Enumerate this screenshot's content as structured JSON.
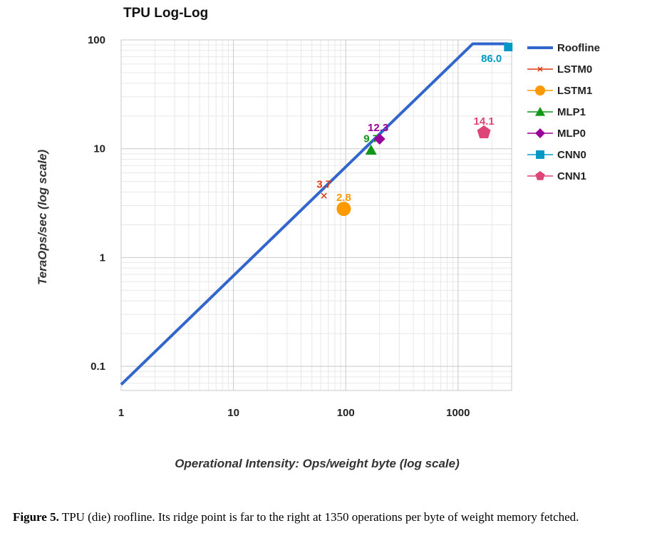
{
  "chart_data": {
    "type": "scatter",
    "title": "TPU Log-Log",
    "xlabel": "Operational Intensity: Ops/weight byte (log scale)",
    "ylabel": "TeraOps/sec (log scale)",
    "x_scale": "log",
    "y_scale": "log",
    "xlim": [
      1,
      3000
    ],
    "ylim": [
      0.06,
      100
    ],
    "x_ticks": [
      "1",
      "10",
      "100",
      "1000"
    ],
    "x_tick_values": [
      1,
      10,
      100,
      1000
    ],
    "y_ticks": [
      "0.1",
      "1",
      "10",
      "100"
    ],
    "y_tick_values": [
      0.1,
      1,
      10,
      100
    ],
    "grid": true,
    "legend_position": "right",
    "roofline": {
      "name": "Roofline",
      "color": "#3366cc",
      "x": [
        1,
        1350,
        2800
      ],
      "y": [
        0.068,
        92,
        92
      ]
    },
    "series": [
      {
        "name": "LSTM0",
        "x": 64,
        "y": 3.7,
        "label": "3.7",
        "marker": "x",
        "color": "#dc3912"
      },
      {
        "name": "LSTM1",
        "x": 96,
        "y": 2.8,
        "label": "2.8",
        "marker": "circle",
        "color": "#ff9900"
      },
      {
        "name": "MLP1",
        "x": 168,
        "y": 9.7,
        "label": "9.7",
        "marker": "triangle",
        "color": "#109618"
      },
      {
        "name": "MLP0",
        "x": 200,
        "y": 12.3,
        "label": "12.3",
        "marker": "diamond",
        "color": "#990099"
      },
      {
        "name": "CNN0",
        "x": 2800,
        "y": 86.0,
        "label": "86.0",
        "marker": "square",
        "color": "#0099c6"
      },
      {
        "name": "CNN1",
        "x": 1700,
        "y": 14.1,
        "label": "14.1",
        "marker": "pentagon",
        "color": "#dd4477"
      }
    ]
  },
  "caption": {
    "label": "Figure 5.",
    "text": "TPU (die) roofline. Its ridge point is far to the right at 1350 operations per byte of weight memory fetched."
  }
}
